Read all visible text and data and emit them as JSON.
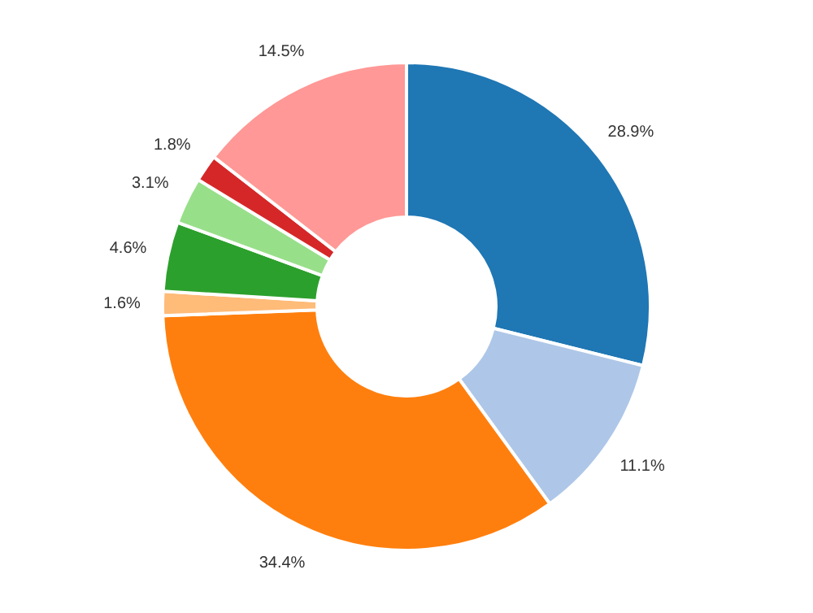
{
  "chart_data": {
    "type": "donut",
    "categories": [
      null,
      null,
      null,
      null,
      null,
      null,
      null,
      null
    ],
    "values": [
      28.9,
      11.1,
      34.4,
      1.6,
      4.6,
      3.1,
      1.8,
      14.5
    ],
    "colors": [
      "#1f77b4",
      "#aec7e8",
      "#ff7f0e",
      "#ffbb78",
      "#2ca02c",
      "#98df8a",
      "#d62728",
      "#ff9896"
    ],
    "value_labels": [
      "28.9%",
      "11.1%",
      "34.4%",
      "1.6%",
      "4.6%",
      "3.1%",
      "1.8%",
      "14.5%"
    ],
    "legend": false
  }
}
